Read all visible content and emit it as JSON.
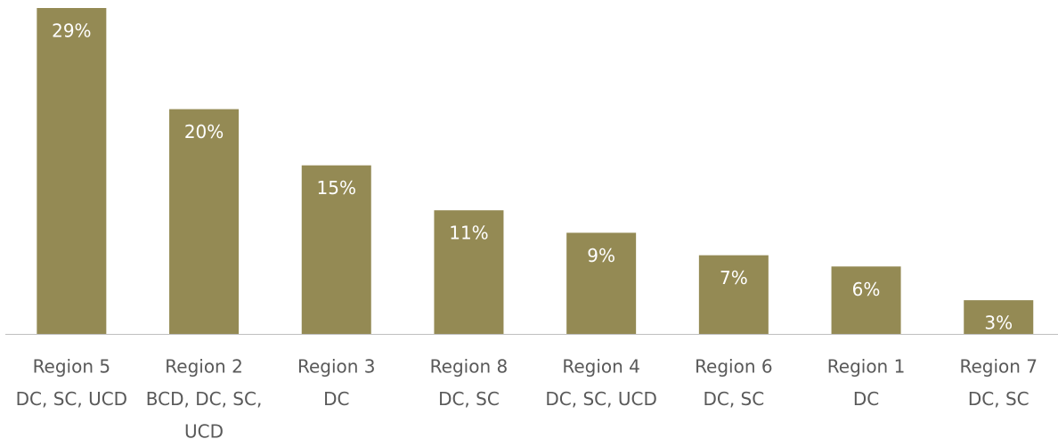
{
  "chart_data": {
    "type": "bar",
    "categories": [
      [
        "Region 5",
        "DC, SC, UCD"
      ],
      [
        "Region 2",
        "BCD, DC, SC,",
        "UCD"
      ],
      [
        "Region 3",
        "DC"
      ],
      [
        "Region 8",
        "DC, SC"
      ],
      [
        "Region 4",
        "DC, SC, UCD"
      ],
      [
        "Region 6",
        "DC, SC"
      ],
      [
        "Region 1",
        "DC"
      ],
      [
        "Region 7",
        "DC, SC"
      ]
    ],
    "values": [
      29,
      20,
      15,
      11,
      9,
      7,
      6,
      3
    ],
    "value_labels": [
      "29%",
      "20%",
      "15%",
      "11%",
      "9%",
      "7%",
      "6%",
      "3%"
    ],
    "color": "#948a54"
  }
}
